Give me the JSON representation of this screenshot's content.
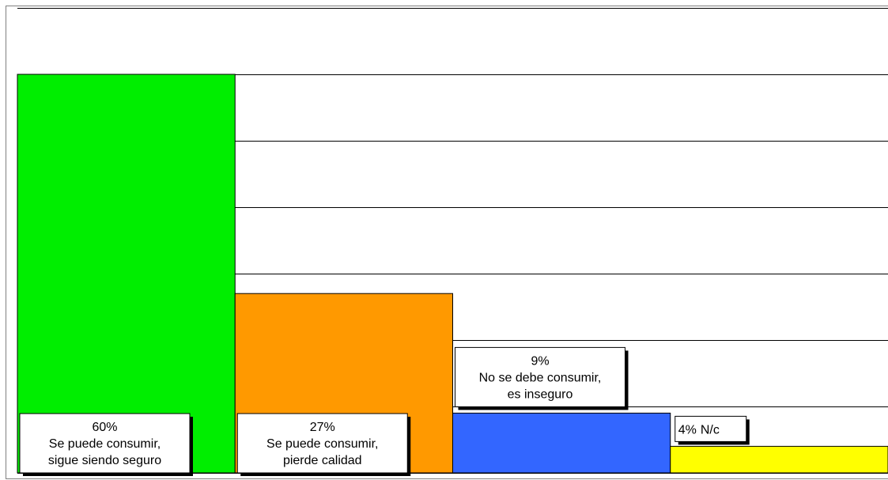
{
  "chart_data": {
    "type": "bar",
    "categories": [
      "Se puede consumir, sigue siendo seguro",
      "Se puede consumir, pierde calidad",
      "No se debe consumir, es inseguro",
      "N/c"
    ],
    "values": [
      60,
      27,
      9,
      4
    ],
    "value_labels": [
      "60%",
      "27%",
      "9%",
      "4%"
    ],
    "colors": [
      "#00ee00",
      "#ff9900",
      "#3366ff",
      "#ffff00"
    ],
    "ylim": [
      0,
      70
    ],
    "yticks": [
      0,
      10,
      20,
      30,
      40,
      50,
      60,
      70
    ],
    "grid": true
  }
}
